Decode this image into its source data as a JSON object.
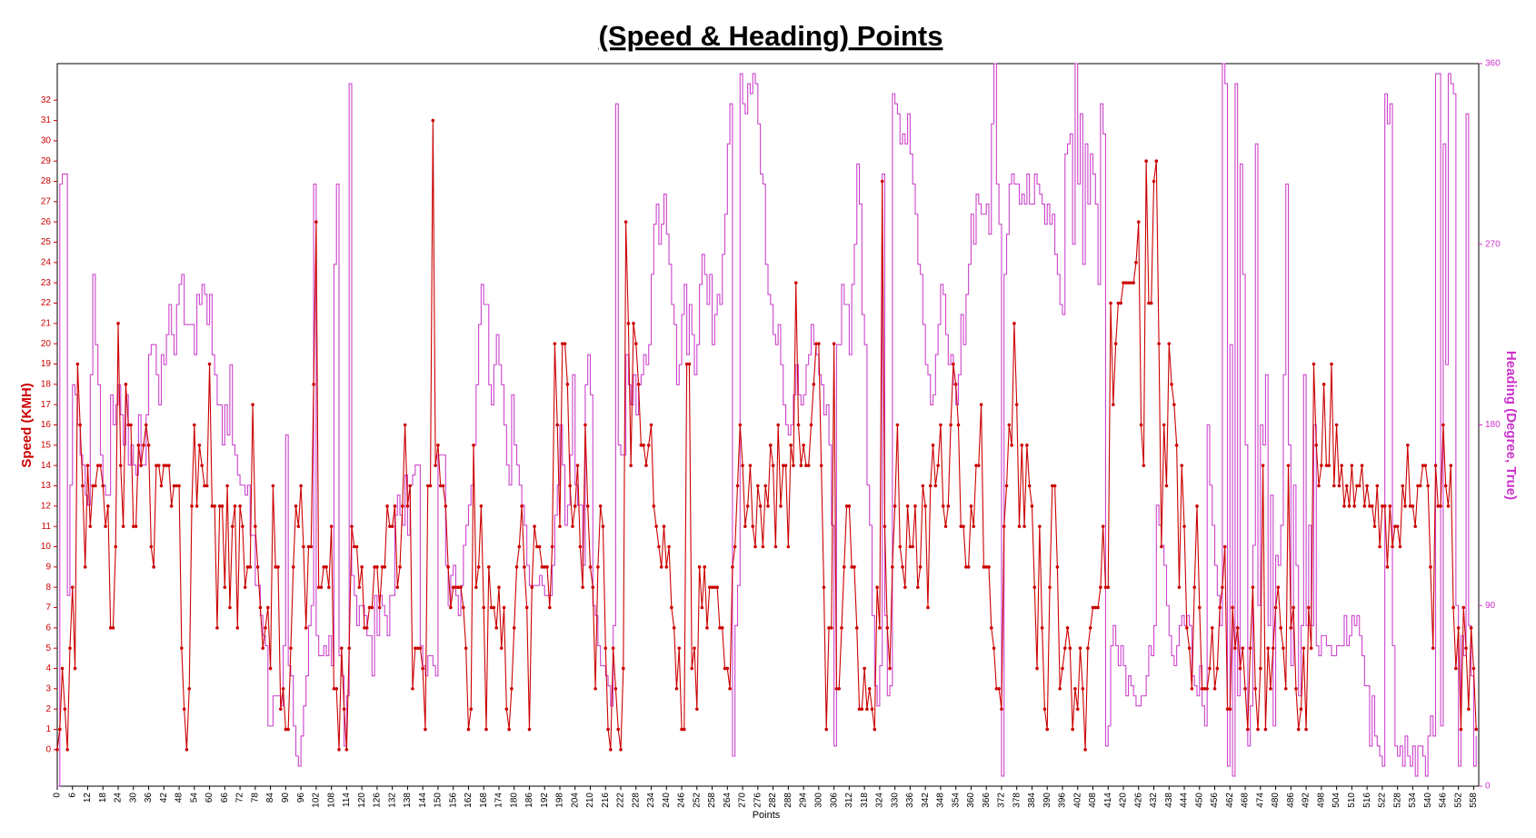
{
  "chart_data": {
    "type": "line",
    "title": "(Speed & Heading) Points",
    "x_label": "Points",
    "y_label": "Speed (KMH)",
    "y2_label": "Heading (Degree, True)",
    "xlim": [
      0,
      560
    ],
    "xticks": [
      0,
      6,
      12,
      18,
      24,
      30,
      36,
      42,
      48,
      54,
      60,
      66,
      72,
      78,
      84,
      90,
      96,
      102,
      108,
      114,
      120,
      126,
      132,
      138,
      144,
      150,
      156,
      162,
      168,
      174,
      180,
      186,
      192,
      198,
      204,
      210,
      216,
      222,
      228,
      234,
      240,
      246,
      252,
      258,
      264,
      270,
      276,
      282,
      288,
      294,
      300,
      306,
      312,
      318,
      324,
      330,
      336,
      342,
      348,
      354,
      360,
      366,
      372,
      378,
      384,
      390,
      396,
      402,
      408,
      414,
      420,
      426,
      432,
      438,
      444,
      450,
      456,
      462,
      468,
      474,
      480,
      486,
      492,
      498,
      504,
      510,
      516,
      522,
      528,
      534,
      540,
      546,
      552,
      558
    ],
    "ylim": [
      -1.8,
      33.8
    ],
    "yticks": [
      0,
      1,
      2,
      3,
      4,
      5,
      6,
      7,
      8,
      9,
      10,
      11,
      12,
      13,
      14,
      15,
      16,
      17,
      18,
      19,
      20,
      21,
      22,
      23,
      24,
      25,
      26,
      27,
      28,
      29,
      30,
      31,
      32
    ],
    "y2lim": [
      0,
      360
    ],
    "y2ticks": [
      0,
      90,
      180,
      270,
      360
    ],
    "series": [
      {
        "color": "#cc0000",
        "axis": "y",
        "markers": true,
        "values": [
          0,
          1,
          4,
          2,
          0,
          5,
          8,
          4,
          19,
          16,
          13,
          9,
          14,
          11,
          13,
          13,
          14,
          14,
          13,
          11,
          12,
          6,
          6,
          10,
          21,
          14,
          11,
          18,
          16,
          16,
          11,
          11,
          15,
          14,
          15,
          16,
          15,
          10,
          9,
          14,
          14,
          13,
          14,
          14,
          14,
          12,
          13,
          13,
          13,
          5,
          2,
          0,
          3,
          12,
          16,
          12,
          15,
          14,
          13,
          13,
          19,
          12,
          12,
          6,
          12,
          12,
          8,
          13,
          7,
          11,
          12,
          6,
          12,
          11,
          8,
          9,
          9,
          17,
          11,
          9,
          7,
          5,
          6,
          7,
          4,
          13,
          9,
          9,
          2,
          3,
          1,
          1,
          5,
          9,
          12,
          11,
          13,
          10,
          6,
          10,
          10,
          18,
          26,
          8,
          8,
          9,
          9,
          8,
          11,
          3,
          3,
          0,
          5,
          2,
          0,
          5,
          11,
          10,
          10,
          8,
          9,
          6,
          6,
          7,
          7,
          9,
          9,
          7,
          9,
          9,
          12,
          11,
          11,
          12,
          8,
          9,
          12,
          16,
          12,
          13,
          3,
          5,
          5,
          5,
          4,
          1,
          13,
          13,
          31,
          14,
          15,
          13,
          13,
          12,
          9,
          7,
          8,
          8,
          8,
          8,
          7,
          5,
          1,
          2,
          15,
          8,
          9,
          12,
          7,
          1,
          9,
          7,
          7,
          6,
          8,
          5,
          7,
          2,
          1,
          3,
          6,
          9,
          10,
          12,
          9,
          7,
          1,
          8,
          11,
          10,
          10,
          9,
          9,
          9,
          7,
          10,
          20,
          16,
          11,
          20,
          20,
          18,
          13,
          11,
          12,
          14,
          10,
          8,
          16,
          12,
          9,
          8,
          3,
          9,
          12,
          11,
          5,
          1,
          0,
          5,
          3,
          1,
          0,
          4,
          26,
          21,
          14,
          21,
          20,
          18,
          15,
          15,
          14,
          15,
          16,
          12,
          11,
          10,
          9,
          11,
          9,
          10,
          7,
          6,
          3,
          5,
          1,
          1,
          19,
          19,
          4,
          5,
          2,
          9,
          7,
          9,
          6,
          8,
          8,
          8,
          8,
          6,
          6,
          4,
          4,
          3,
          9,
          10,
          13,
          16,
          14,
          11,
          12,
          14,
          11,
          10,
          13,
          12,
          10,
          13,
          12,
          15,
          14,
          10,
          16,
          12,
          14,
          14,
          10,
          15,
          14,
          23,
          16,
          14,
          15,
          14,
          14,
          16,
          18,
          20,
          20,
          14,
          8,
          1,
          6,
          6,
          20,
          3,
          3,
          6,
          9,
          12,
          12,
          9,
          9,
          6,
          2,
          2,
          4,
          2,
          3,
          2,
          1,
          8,
          6,
          28,
          11,
          6,
          4,
          9,
          12,
          16,
          10,
          9,
          8,
          12,
          10,
          10,
          12,
          8,
          9,
          13,
          12,
          7,
          13,
          15,
          13,
          14,
          16,
          12,
          11,
          12,
          16,
          19,
          18,
          16,
          11,
          11,
          9,
          9,
          12,
          11,
          14,
          14,
          17,
          9,
          9,
          9,
          6,
          5,
          3,
          3,
          2,
          11,
          13,
          16,
          15,
          21,
          17,
          11,
          15,
          11,
          15,
          13,
          12,
          8,
          4,
          11,
          6,
          2,
          1,
          8,
          13,
          13,
          9,
          3,
          4,
          5,
          6,
          5,
          1,
          3,
          2,
          5,
          3,
          0,
          5,
          6,
          7,
          7,
          7,
          8,
          11,
          8,
          8,
          22,
          17,
          20,
          22,
          22,
          23,
          23,
          23,
          23,
          23,
          24,
          26,
          16,
          14,
          29,
          22,
          22,
          28,
          29,
          20,
          10,
          16,
          13,
          20,
          18,
          17,
          15,
          8,
          14,
          11,
          6,
          5,
          3,
          8,
          12,
          7,
          3,
          3,
          3,
          4,
          6,
          3,
          4,
          7,
          8,
          10,
          2,
          2,
          7,
          5,
          6,
          4,
          5,
          3,
          1,
          5,
          8,
          3,
          1,
          4,
          14,
          1,
          5,
          3,
          5,
          7,
          8,
          6,
          5,
          3,
          14,
          6,
          7,
          3,
          1,
          2,
          5,
          1,
          7,
          5,
          19,
          15,
          13,
          14,
          18,
          14,
          14,
          19,
          13,
          16,
          13,
          14,
          12,
          13,
          12,
          14,
          12,
          13,
          13,
          14,
          12,
          13,
          12,
          12,
          11,
          13,
          10,
          12,
          12,
          9,
          12,
          10,
          11,
          11,
          10,
          13,
          12,
          15,
          12,
          12,
          11,
          13,
          13,
          14,
          14,
          13,
          9,
          5,
          14,
          12,
          12,
          16,
          13,
          12,
          14,
          7,
          4,
          6,
          1,
          7,
          5,
          2,
          6,
          4,
          1
        ]
      },
      {
        "color": "#cc44cc",
        "axis": "y2",
        "drawstyle": "steps",
        "values": [
          0,
          300,
          305,
          305,
          95,
          150,
          200,
          195,
          180,
          165,
          160,
          145,
          140,
          205,
          255,
          220,
          200,
          165,
          150,
          145,
          145,
          195,
          180,
          190,
          200,
          185,
          170,
          195,
          160,
          170,
          160,
          155,
          185,
          160,
          160,
          185,
          215,
          220,
          220,
          205,
          190,
          215,
          210,
          225,
          240,
          225,
          215,
          240,
          250,
          255,
          230,
          230,
          230,
          230,
          215,
          245,
          240,
          250,
          245,
          230,
          245,
          215,
          205,
          190,
          190,
          170,
          190,
          175,
          210,
          170,
          165,
          155,
          150,
          150,
          145,
          150,
          125,
          125,
          100,
          100,
          85,
          75,
          70,
          30,
          30,
          45,
          45,
          45,
          40,
          70,
          175,
          60,
          55,
          30,
          15,
          10,
          25,
          40,
          55,
          80,
          90,
          300,
          75,
          65,
          65,
          70,
          65,
          75,
          60,
          260,
          300,
          65,
          55,
          20,
          45,
          350,
          105,
          95,
          80,
          90,
          90,
          85,
          75,
          75,
          55,
          95,
          75,
          95,
          90,
          85,
          75,
          95,
          95,
          135,
          145,
          135,
          130,
          155,
          125,
          150,
          155,
          160,
          160,
          70,
          60,
          55,
          65,
          65,
          60,
          55,
          165,
          165,
          165,
          110,
          90,
          105,
          110,
          95,
          85,
          100,
          120,
          130,
          140,
          150,
          170,
          200,
          230,
          250,
          240,
          240,
          200,
          190,
          210,
          225,
          210,
          200,
          180,
          160,
          150,
          195,
          170,
          160,
          150,
          140,
          130,
          110,
          100,
          100,
          100,
          100,
          105,
          100,
          95,
          95,
          95,
          110,
          135,
          150,
          180,
          160,
          130,
          140,
          165,
          205,
          150,
          140,
          140,
          110,
          200,
          215,
          195,
          90,
          85,
          70,
          60,
          60,
          55,
          50,
          40,
          80,
          340,
          170,
          165,
          165,
          215,
          200,
          190,
          205,
          185,
          200,
          205,
          215,
          210,
          220,
          255,
          280,
          290,
          270,
          280,
          295,
          275,
          260,
          240,
          230,
          200,
          210,
          235,
          250,
          215,
          240,
          225,
          205,
          220,
          250,
          265,
          255,
          240,
          255,
          220,
          235,
          245,
          240,
          265,
          285,
          320,
          340,
          15,
          80,
          100,
          355,
          340,
          335,
          350,
          345,
          355,
          350,
          330,
          305,
          300,
          260,
          245,
          240,
          225,
          220,
          230,
          210,
          190,
          180,
          175,
          180,
          195,
          210,
          195,
          190,
          195,
          210,
          215,
          230,
          220,
          215,
          205,
          200,
          185,
          190,
          170,
          130,
          20,
          220,
          220,
          250,
          240,
          240,
          215,
          250,
          270,
          310,
          290,
          235,
          220,
          150,
          130,
          85,
          50,
          40,
          60,
          305,
          85,
          45,
          50,
          345,
          340,
          335,
          320,
          325,
          320,
          335,
          315,
          300,
          285,
          260,
          255,
          230,
          210,
          205,
          190,
          195,
          215,
          230,
          250,
          245,
          225,
          210,
          215,
          200,
          190,
          205,
          235,
          220,
          245,
          260,
          285,
          270,
          295,
          290,
          285,
          285,
          290,
          275,
          330,
          360,
          300,
          280,
          5,
          255,
          275,
          300,
          305,
          300,
          300,
          290,
          295,
          290,
          305,
          290,
          290,
          305,
          300,
          295,
          290,
          280,
          290,
          280,
          285,
          265,
          255,
          240,
          235,
          315,
          320,
          325,
          270,
          360,
          300,
          335,
          260,
          320,
          290,
          315,
          305,
          290,
          250,
          340,
          325,
          20,
          30,
          70,
          80,
          70,
          60,
          70,
          60,
          45,
          55,
          50,
          45,
          40,
          40,
          45,
          45,
          55,
          70,
          65,
          80,
          140,
          130,
          120,
          110,
          90,
          75,
          65,
          60,
          70,
          80,
          85,
          80,
          85,
          80,
          55,
          50,
          45,
          60,
          40,
          30,
          180,
          150,
          130,
          110,
          95,
          80,
          360,
          350,
          10,
          220,
          5,
          350,
          45,
          310,
          255,
          170,
          20,
          40,
          120,
          320,
          90,
          180,
          170,
          205,
          80,
          145,
          30,
          115,
          110,
          130,
          205,
          300,
          170,
          60,
          150,
          110,
          45,
          80,
          205,
          80,
          130,
          80,
          180,
          70,
          65,
          75,
          75,
          70,
          70,
          65,
          65,
          70,
          70,
          70,
          85,
          70,
          75,
          85,
          80,
          85,
          75,
          65,
          50,
          50,
          20,
          45,
          25,
          20,
          15,
          10,
          345,
          330,
          340,
          70,
          20,
          15,
          20,
          10,
          25,
          15,
          10,
          20,
          5,
          20,
          20,
          15,
          5,
          25,
          35,
          25,
          355,
          355,
          30,
          320,
          210,
          355,
          350,
          345,
          90,
          10,
          75,
          65,
          335,
          80,
          55,
          10,
          25
        ]
      }
    ]
  }
}
